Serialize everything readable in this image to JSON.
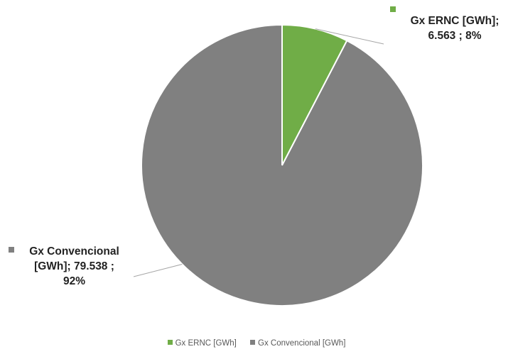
{
  "chart_data": {
    "type": "pie",
    "title": "",
    "series": [
      {
        "name": "Gx ERNC [GWh]",
        "value": 6.563,
        "percent": 8,
        "color": "#70ad47",
        "label_line1": "Gx ERNC [GWh];",
        "label_line2": "6.563 ; 8%"
      },
      {
        "name": "Gx Convencional [GWh]",
        "value": 79.538,
        "percent": 92,
        "color": "#808080",
        "label_line1": "Gx Convencional",
        "label_line2": "[GWh];  79.538 ;",
        "label_line3": "92%"
      }
    ],
    "legend_position": "bottom"
  }
}
